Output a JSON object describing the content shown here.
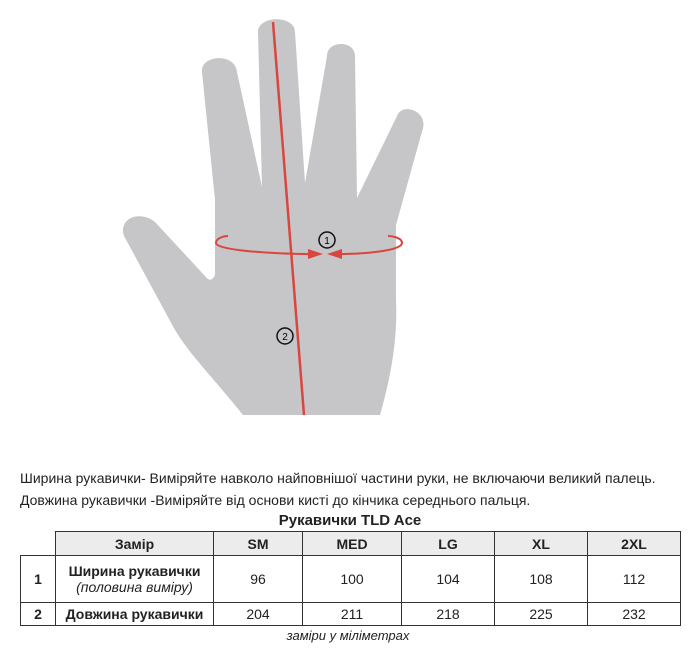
{
  "diagram": {
    "markers": [
      "1",
      "2"
    ],
    "colors": {
      "hand": "#c6c6c8",
      "measure_line": "#d9463f"
    }
  },
  "instructions": [
    "Ширина рукавички- Виміряйте навколо найповнішої частини руки, не включаючи великий палець.",
    "Довжина рукавички -Виміряйте від основи кисті до кінчика середнього пальця."
  ],
  "table": {
    "title": "Рукавички TLD Ace",
    "headers": [
      "Замір",
      "SM",
      "MED",
      "LG",
      "XL",
      "2XL"
    ],
    "rows": [
      {
        "num": "1",
        "label": "Ширина рукавички",
        "sublabel": "(половина виміру)",
        "values": [
          "96",
          "100",
          "104",
          "108",
          "112"
        ]
      },
      {
        "num": "2",
        "label": "Довжина рукавички",
        "values": [
          "204",
          "211",
          "218",
          "225",
          "232"
        ]
      }
    ],
    "footnote": "заміри у міліметрах"
  }
}
